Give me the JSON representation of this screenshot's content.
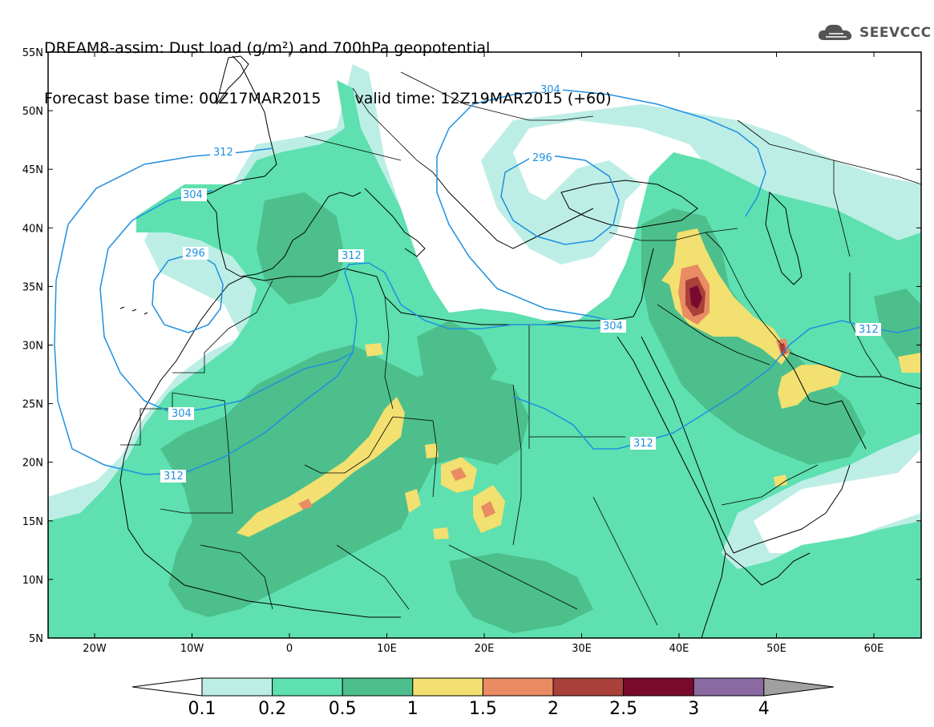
{
  "title": {
    "line1": "DREAM8-assim: Dust load (g/m²) and 700hPa geopotential",
    "base_time": "Forecast base time: 00Z17MAR2015",
    "valid_time": "valid time: 12Z19MAR2015 (+60)"
  },
  "logo": {
    "text": "SEEVCCC",
    "icon": "cloud-logo-icon"
  },
  "axes": {
    "lat_labels": [
      "55N",
      "50N",
      "45N",
      "40N",
      "35N",
      "30N",
      "25N",
      "20N",
      "15N",
      "10N",
      "5N"
    ],
    "lon_labels": [
      "20W",
      "10W",
      "0",
      "10E",
      "20E",
      "30E",
      "40E",
      "50E",
      "60E"
    ]
  },
  "contours": {
    "color": "#1e90e0",
    "labels": [
      "304",
      "296",
      "312",
      "304",
      "296",
      "312",
      "304",
      "304",
      "312",
      "312",
      "312"
    ]
  },
  "colorbar": {
    "labels": [
      "0.1",
      "0.2",
      "0.5",
      "1",
      "1.5",
      "2",
      "2.5",
      "3",
      "4"
    ],
    "colors": [
      "#ffffff",
      "#bdeee6",
      "#5ee0b0",
      "#4cbf8c",
      "#f2e070",
      "#e98c64",
      "#a9403a",
      "#7a0a2d",
      "#8a6aa0",
      "#a0a0a0"
    ]
  },
  "dust_palette": {
    "level1": "#bdeee6",
    "level2": "#5ee0b0",
    "level3": "#4cbf8c",
    "level4": "#f2e070",
    "level5": "#e98c64",
    "level6": "#a9403a",
    "level7": "#7a0a2d"
  }
}
